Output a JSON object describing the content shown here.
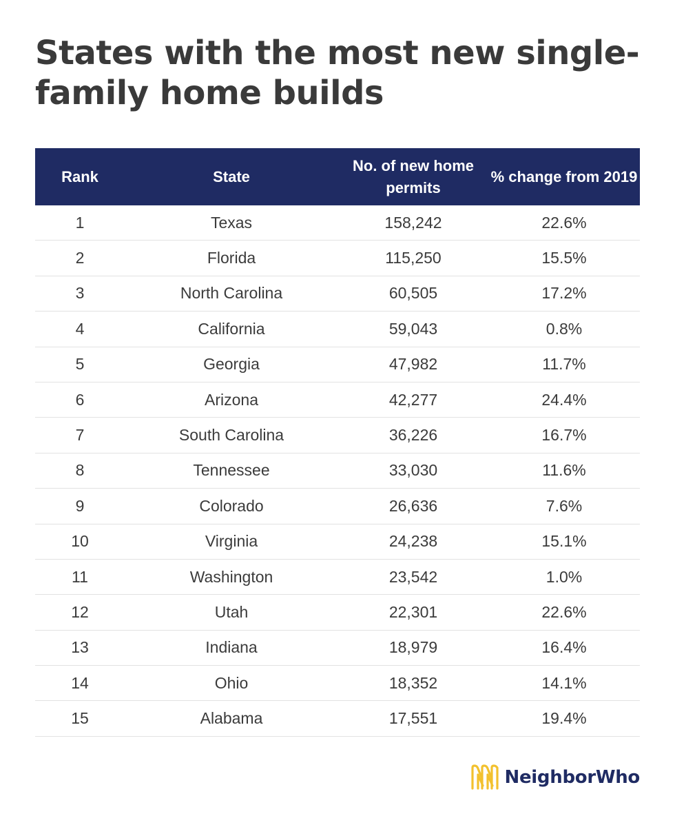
{
  "chart_data": {
    "type": "table",
    "title": "States with the most new single-family home builds",
    "columns": [
      "Rank",
      "State",
      "No. of new home permits",
      "% change from 2019"
    ],
    "rows": [
      {
        "rank": "1",
        "state": "Texas",
        "permits": "158,242",
        "change": "22.6%"
      },
      {
        "rank": "2",
        "state": "Florida",
        "permits": "115,250",
        "change": "15.5%"
      },
      {
        "rank": "3",
        "state": "North Carolina",
        "permits": "60,505",
        "change": "17.2%"
      },
      {
        "rank": "4",
        "state": "California",
        "permits": "59,043",
        "change": "0.8%"
      },
      {
        "rank": "5",
        "state": "Georgia",
        "permits": "47,982",
        "change": "11.7%"
      },
      {
        "rank": "6",
        "state": "Arizona",
        "permits": "42,277",
        "change": "24.4%"
      },
      {
        "rank": "7",
        "state": "South Carolina",
        "permits": "36,226",
        "change": "16.7%"
      },
      {
        "rank": "8",
        "state": "Tennessee",
        "permits": "33,030",
        "change": "11.6%"
      },
      {
        "rank": "9",
        "state": "Colorado",
        "permits": "26,636",
        "change": "7.6%"
      },
      {
        "rank": "10",
        "state": "Virginia",
        "permits": "24,238",
        "change": "15.1%"
      },
      {
        "rank": "11",
        "state": "Washington",
        "permits": "23,542",
        "change": "1.0%"
      },
      {
        "rank": "12",
        "state": "Utah",
        "permits": "22,301",
        "change": "22.6%"
      },
      {
        "rank": "13",
        "state": "Indiana",
        "permits": "18,979",
        "change": "16.4%"
      },
      {
        "rank": "14",
        "state": "Ohio",
        "permits": "18,352",
        "change": "14.1%"
      },
      {
        "rank": "15",
        "state": "Alabama",
        "permits": "17,551",
        "change": "19.4%"
      }
    ]
  },
  "brand": {
    "name": "NeighborWho",
    "logo_icon": "neighborwho-logo-icon",
    "logo_color": "#f2c12e",
    "text_color": "#1f2b63"
  },
  "colors": {
    "header_background": "#1f2b63",
    "header_text": "#ffffff",
    "row_divider": "#e2e2e2",
    "title_text": "#3a3a3a"
  }
}
